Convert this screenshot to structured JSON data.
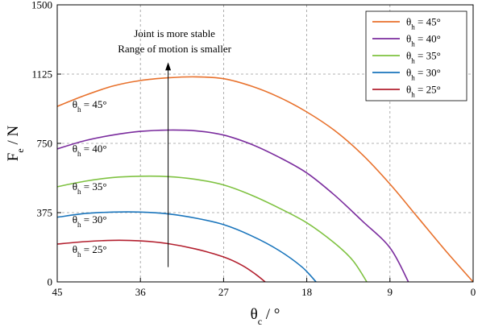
{
  "chart_data": {
    "type": "line",
    "xlabel_main": "θ",
    "xlabel_sub": "c",
    "xlabel_unit": " / °",
    "ylabel_main": "F",
    "ylabel_sub": "e",
    "ylabel_unit": " / N",
    "xlim": [
      45,
      0
    ],
    "ylim": [
      0,
      1500
    ],
    "x_reversed": true,
    "xticks": [
      45,
      36,
      27,
      18,
      9,
      0
    ],
    "yticks": [
      0,
      375,
      750,
      1125,
      1500
    ],
    "grid": true,
    "legend_position": "top-right",
    "annotation": {
      "line1": "Joint is more stable",
      "line2": "Range of motion is smaller",
      "arrow_from": [
        33,
        80
      ],
      "arrow_to": [
        33,
        1180
      ]
    },
    "series": [
      {
        "name": "θh = 45°",
        "label_main": "θ",
        "label_sub": "h",
        "label_rest": " = 45°",
        "color": "#e8712c",
        "inline_label_at": [
          41.5,
          960
        ],
        "points": [
          [
            45,
            950
          ],
          [
            42,
            1010
          ],
          [
            39,
            1060
          ],
          [
            36,
            1090
          ],
          [
            33,
            1105
          ],
          [
            30,
            1110
          ],
          [
            27,
            1100
          ],
          [
            24,
            1060
          ],
          [
            21,
            1000
          ],
          [
            18,
            920
          ],
          [
            15,
            820
          ],
          [
            12,
            690
          ],
          [
            9,
            530
          ],
          [
            6,
            350
          ],
          [
            3,
            170
          ],
          [
            0,
            0
          ]
        ]
      },
      {
        "name": "θh = 40°",
        "label_main": "θ",
        "label_sub": "h",
        "label_rest": " = 40°",
        "color": "#7b2d9e",
        "inline_label_at": [
          41.5,
          720
        ],
        "points": [
          [
            45,
            720
          ],
          [
            42,
            765
          ],
          [
            39,
            795
          ],
          [
            36,
            815
          ],
          [
            33,
            822
          ],
          [
            30,
            818
          ],
          [
            27,
            795
          ],
          [
            24,
            745
          ],
          [
            21,
            675
          ],
          [
            18,
            590
          ],
          [
            15,
            470
          ],
          [
            12,
            330
          ],
          [
            9,
            185
          ],
          [
            7,
            0
          ]
        ]
      },
      {
        "name": "θh = 35°",
        "label_main": "θ",
        "label_sub": "h",
        "label_rest": " = 35°",
        "color": "#7fc241",
        "inline_label_at": [
          41.5,
          515
        ],
        "points": [
          [
            45,
            515
          ],
          [
            42,
            545
          ],
          [
            39,
            565
          ],
          [
            36,
            572
          ],
          [
            33,
            570
          ],
          [
            30,
            555
          ],
          [
            27,
            525
          ],
          [
            24,
            470
          ],
          [
            21,
            400
          ],
          [
            18,
            320
          ],
          [
            15,
            210
          ],
          [
            13,
            115
          ],
          [
            11.5,
            0
          ]
        ]
      },
      {
        "name": "θh = 30°",
        "label_main": "θ",
        "label_sub": "h",
        "label_rest": " = 30°",
        "color": "#1a75bc",
        "inline_label_at": [
          41.5,
          335
        ],
        "points": [
          [
            45,
            350
          ],
          [
            42,
            370
          ],
          [
            39,
            378
          ],
          [
            36,
            378
          ],
          [
            33,
            368
          ],
          [
            30,
            345
          ],
          [
            27,
            310
          ],
          [
            24,
            250
          ],
          [
            21,
            170
          ],
          [
            18.5,
            80
          ],
          [
            17,
            0
          ]
        ]
      },
      {
        "name": "θh = 25°",
        "label_main": "θ",
        "label_sub": "h",
        "label_rest": " = 25°",
        "color": "#b3202f",
        "inline_label_at": [
          41.5,
          175
        ],
        "points": [
          [
            45,
            205
          ],
          [
            42,
            218
          ],
          [
            39,
            225
          ],
          [
            36,
            222
          ],
          [
            33,
            207
          ],
          [
            30,
            178
          ],
          [
            27,
            135
          ],
          [
            25,
            90
          ],
          [
            23.5,
            40
          ],
          [
            22.5,
            0
          ]
        ]
      }
    ]
  }
}
